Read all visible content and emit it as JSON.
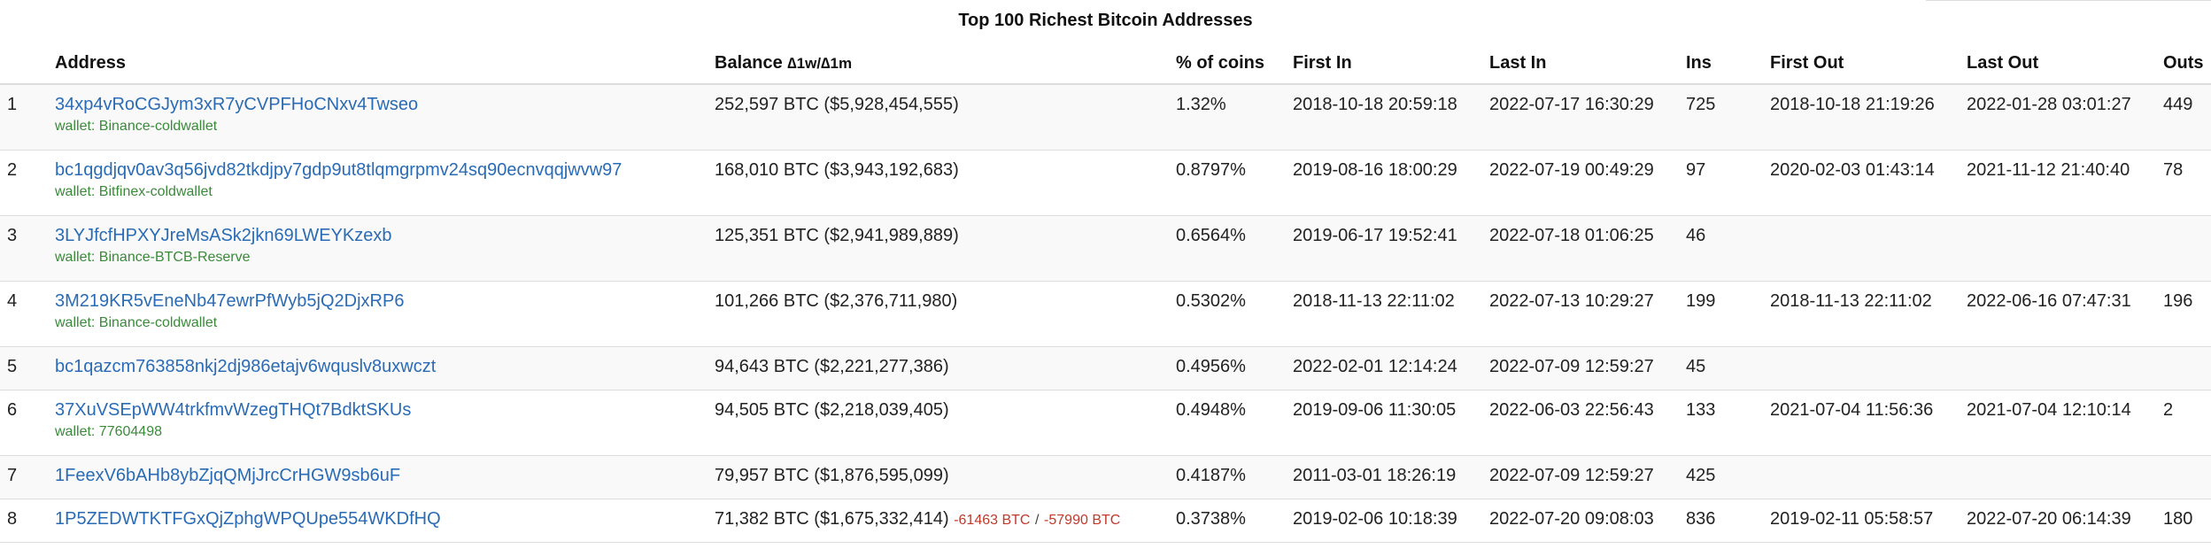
{
  "caption": "Top 100 Richest Bitcoin Addresses",
  "columns": {
    "rank": "",
    "address": "Address",
    "balance": "Balance",
    "balance_delta_label": "∆1w/∆1m",
    "pct": "% of coins",
    "first_in": "First In",
    "last_in": "Last In",
    "ins": "Ins",
    "first_out": "First Out",
    "last_out": "Last Out",
    "outs": "Outs"
  },
  "colors": {
    "link": "#2a6bb5",
    "wallet": "#3a8a3a",
    "negative": "#c0392b"
  },
  "rows": [
    {
      "rank": "1",
      "address": "34xp4vRoCGJym3xR7yCVPFHoCNxv4Twseo",
      "wallet": "wallet: Binance-coldwallet",
      "balance": "252,597 BTC ($5,928,454,555)",
      "pct": "1.32%",
      "first_in": "2018-10-18 20:59:18",
      "last_in": "2022-07-17 16:30:29",
      "ins": "725",
      "first_out": "2018-10-18 21:19:26",
      "last_out": "2022-01-28 03:01:27",
      "outs": "449"
    },
    {
      "rank": "2",
      "address": "bc1qgdjqv0av3q56jvd82tkdjpy7gdp9ut8tlqmgrpmv24sq90ecnvqqjwvw97",
      "wallet": "wallet: Bitfinex-coldwallet",
      "balance": "168,010 BTC ($3,943,192,683)",
      "pct": "0.8797%",
      "first_in": "2019-08-16 18:00:29",
      "last_in": "2022-07-19 00:49:29",
      "ins": "97",
      "first_out": "2020-02-03 01:43:14",
      "last_out": "2021-11-12 21:40:40",
      "outs": "78"
    },
    {
      "rank": "3",
      "address": "3LYJfcfHPXYJreMsASk2jkn69LWEYKzexb",
      "wallet": "wallet: Binance-BTCB-Reserve",
      "balance": "125,351 BTC ($2,941,989,889)",
      "pct": "0.6564%",
      "first_in": "2019-06-17 19:52:41",
      "last_in": "2022-07-18 01:06:25",
      "ins": "46",
      "first_out": "",
      "last_out": "",
      "outs": ""
    },
    {
      "rank": "4",
      "address": "3M219KR5vEneNb47ewrPfWyb5jQ2DjxRP6",
      "wallet": "wallet: Binance-coldwallet",
      "balance": "101,266 BTC ($2,376,711,980)",
      "pct": "0.5302%",
      "first_in": "2018-11-13 22:11:02",
      "last_in": "2022-07-13 10:29:27",
      "ins": "199",
      "first_out": "2018-11-13 22:11:02",
      "last_out": "2022-06-16 07:47:31",
      "outs": "196"
    },
    {
      "rank": "5",
      "address": "bc1qazcm763858nkj2dj986etajv6wquslv8uxwczt",
      "wallet": "",
      "balance": "94,643 BTC ($2,221,277,386)",
      "pct": "0.4956%",
      "first_in": "2022-02-01 12:14:24",
      "last_in": "2022-07-09 12:59:27",
      "ins": "45",
      "first_out": "",
      "last_out": "",
      "outs": ""
    },
    {
      "rank": "6",
      "address": "37XuVSEpWW4trkfmvWzegTHQt7BdktSKUs",
      "wallet": "wallet: 77604498",
      "balance": "94,505 BTC ($2,218,039,405)",
      "pct": "0.4948%",
      "first_in": "2019-09-06 11:30:05",
      "last_in": "2022-06-03 22:56:43",
      "ins": "133",
      "first_out": "2021-07-04 11:56:36",
      "last_out": "2021-07-04 12:10:14",
      "outs": "2"
    },
    {
      "rank": "7",
      "address": "1FeexV6bAHb8ybZjqQMjJrcCrHGW9sb6uF",
      "wallet": "",
      "balance": "79,957 BTC ($1,876,595,099)",
      "pct": "0.4187%",
      "first_in": "2011-03-01 18:26:19",
      "last_in": "2022-07-09 12:59:27",
      "ins": "425",
      "first_out": "",
      "last_out": "",
      "outs": ""
    },
    {
      "rank": "8",
      "address": "1P5ZEDWTKTFGxQjZphgWPQUpe554WKDfHQ",
      "wallet": "",
      "balance": "71,382 BTC ($1,675,332,414)",
      "delta_1w": "-61463 BTC",
      "delta_sep": "/",
      "delta_1m": "-57990 BTC",
      "pct": "0.3738%",
      "first_in": "2019-02-06 10:18:39",
      "last_in": "2022-07-20 09:08:03",
      "ins": "836",
      "first_out": "2019-02-11 05:58:57",
      "last_out": "2022-07-20 06:14:39",
      "outs": "180"
    }
  ]
}
